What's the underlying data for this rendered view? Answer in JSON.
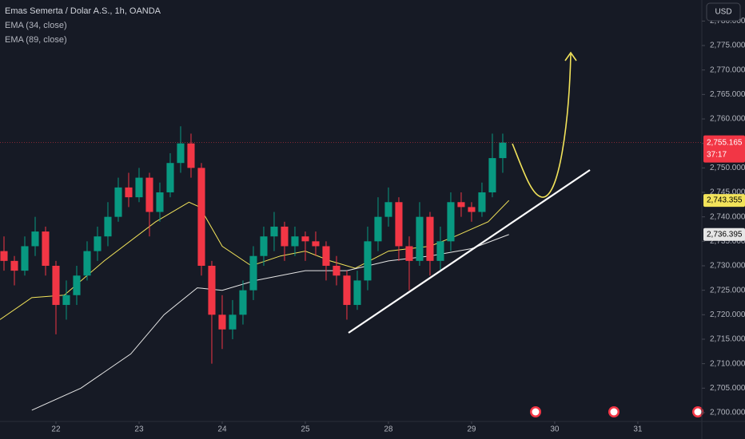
{
  "chart_data": {
    "type": "candlestick",
    "title": "Emas Semerta / Dolar A.S., 1h, OANDA",
    "currency": "USD",
    "up_color": "#089981",
    "down_color": "#f23645",
    "x": [
      -0.625,
      -0.5,
      -0.375,
      -0.25,
      -0.125,
      0,
      0.125,
      0.25,
      0.375,
      0.5,
      0.625,
      0.75,
      0.875,
      1,
      1.125,
      1.25,
      1.375,
      1.5,
      1.625,
      1.75,
      1.875,
      2,
      2.125,
      2.25,
      2.375,
      2.5,
      2.625,
      2.75,
      2.875,
      3,
      3.125,
      3.25,
      3.375,
      3.5,
      3.625,
      3.75,
      3.875,
      4,
      4.125,
      4.25,
      4.375,
      4.5,
      4.625,
      4.75,
      4.875,
      5,
      5.125,
      5.25,
      5.375
    ],
    "open": [
      2733,
      2731,
      2729,
      2734,
      2737,
      2730,
      2722,
      2724,
      2728,
      2733,
      2736,
      2740,
      2746,
      2744,
      2748,
      2741,
      2745,
      2751,
      2755,
      2750,
      2730,
      2720,
      2717,
      2720,
      2725,
      2732,
      2736,
      2738,
      2734,
      2736,
      2735,
      2734,
      2730,
      2728,
      2722,
      2727,
      2735,
      2740,
      2743,
      2734,
      2731,
      2740,
      2731,
      2735,
      2743,
      2742,
      2741,
      2745,
      2752
    ],
    "high": [
      2736,
      2732,
      2736,
      2740,
      2738,
      2731,
      2727,
      2730,
      2735,
      2738,
      2743,
      2748,
      2749,
      2750,
      2749,
      2747,
      2753,
      2758.5,
      2757,
      2751,
      2731,
      2724,
      2723,
      2727,
      2734,
      2738,
      2741,
      2739,
      2738,
      2737,
      2737,
      2735,
      2732,
      2729,
      2729,
      2738,
      2744,
      2746,
      2744,
      2736,
      2743,
      2741,
      2738,
      2745,
      2745,
      2743,
      2747,
      2757,
      2757
    ],
    "low": [
      2729,
      2726,
      2728,
      2732,
      2728,
      2716,
      2719,
      2722,
      2727,
      2731,
      2734,
      2739,
      2742,
      2743,
      2736,
      2739,
      2744,
      2749,
      2748,
      2728,
      2710,
      2713,
      2715,
      2718,
      2723,
      2730,
      2733,
      2731,
      2732,
      2731,
      2732,
      2727,
      2726,
      2719,
      2721,
      2725,
      2733,
      2738,
      2731,
      2725,
      2730,
      2728,
      2729,
      2733,
      2740,
      2739,
      2740,
      2744,
      2749
    ],
    "close": [
      2731,
      2729,
      2734,
      2737,
      2730,
      2722,
      2724,
      2728,
      2733,
      2736,
      2740,
      2746,
      2744,
      2748,
      2741,
      2745,
      2751,
      2755,
      2750,
      2730,
      2720,
      2717,
      2720,
      2725,
      2732,
      2736,
      2738,
      2734,
      2736,
      2735,
      2734,
      2730,
      2728,
      2722,
      2727,
      2735,
      2740,
      2743,
      2734,
      2731,
      2740,
      2731,
      2735,
      2743,
      2742,
      2741,
      2745,
      2752,
      2755.165
    ],
    "last_price": 2755.165,
    "last_price_label": "2,755.165",
    "countdown": "37:17",
    "series": [
      {
        "name": "EMA (34, close)",
        "color": "#f2e35a",
        "x": [
          -0.673,
          -0.29,
          0.1,
          0.58,
          1.2,
          1.6,
          1.73,
          2.0,
          2.35,
          2.7,
          3.0,
          3.3,
          3.6,
          4.0,
          4.5,
          4.8,
          5.2,
          5.45
        ],
        "values": [
          2719,
          2723.5,
          2724,
          2731,
          2739,
          2743,
          2742,
          2734,
          2730,
          2732,
          2733,
          2731,
          2729.5,
          2733,
          2734,
          2736,
          2739,
          2743.355
        ],
        "value_labels": [
          null,
          null,
          null,
          null,
          null,
          null,
          null,
          null,
          null,
          null,
          null,
          null,
          null,
          null,
          null,
          null,
          null,
          "2,743.355"
        ]
      },
      {
        "name": "EMA (89, close)",
        "color": "#e6e6e6",
        "x": [
          -0.29,
          0.3,
          0.9,
          1.3,
          1.7,
          2.0,
          2.4,
          3.0,
          3.5,
          4.0,
          4.5,
          5.0,
          5.45
        ],
        "values": [
          2700.5,
          2705,
          2712,
          2720,
          2725.5,
          2725,
          2727,
          2729,
          2729,
          2731,
          2732,
          2733.5,
          2736.395
        ],
        "value_labels": [
          null,
          null,
          null,
          null,
          null,
          null,
          null,
          null,
          null,
          null,
          null,
          null,
          "2,736.395"
        ]
      }
    ],
    "xlim": [
      -0.673,
      7.77
    ],
    "xticks": [
      {
        "value": 0,
        "label": "22"
      },
      {
        "value": 1,
        "label": "23"
      },
      {
        "value": 2,
        "label": "24"
      },
      {
        "value": 3,
        "label": "25"
      },
      {
        "value": 4,
        "label": "28"
      },
      {
        "value": 5,
        "label": "29"
      },
      {
        "value": 6,
        "label": "30"
      },
      {
        "value": 7,
        "label": "31"
      }
    ],
    "ylim": [
      2698.2,
      2784.3
    ],
    "yticks": [
      {
        "value": 2700,
        "label": "2,700.000"
      },
      {
        "value": 2705,
        "label": "2,705.000"
      },
      {
        "value": 2710,
        "label": "2,710.000"
      },
      {
        "value": 2715,
        "label": "2,715.000"
      },
      {
        "value": 2720,
        "label": "2,720.000"
      },
      {
        "value": 2725,
        "label": "2,725.000"
      },
      {
        "value": 2730,
        "label": "2,730.000"
      },
      {
        "value": 2735,
        "label": "2,735.000"
      },
      {
        "value": 2740,
        "label": "2,740.000"
      },
      {
        "value": 2745,
        "label": "2,745.000"
      },
      {
        "value": 2750,
        "label": "2,750.000"
      },
      {
        "value": 2755,
        "label": "2,755.000"
      },
      {
        "value": 2760,
        "label": "2,760.000"
      },
      {
        "value": 2765,
        "label": "2,765.000"
      },
      {
        "value": 2770,
        "label": "2,770.000"
      },
      {
        "value": 2775,
        "label": "2,775.000"
      },
      {
        "value": 2780,
        "label": "2,780.000"
      }
    ],
    "grid": false
  }
}
